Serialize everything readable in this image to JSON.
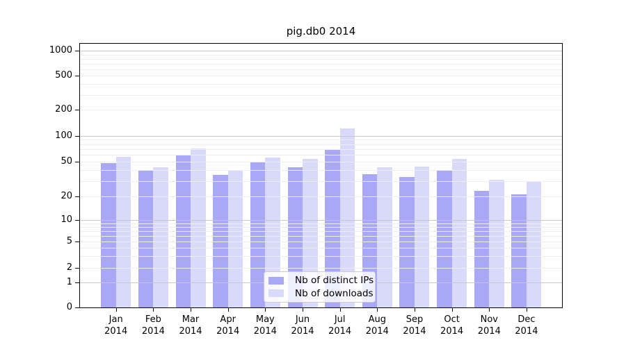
{
  "chart_data": {
    "type": "bar",
    "title": "pig.db0 2014",
    "categories": [
      {
        "month": "Jan",
        "year": "2014"
      },
      {
        "month": "Feb",
        "year": "2014"
      },
      {
        "month": "Mar",
        "year": "2014"
      },
      {
        "month": "Apr",
        "year": "2014"
      },
      {
        "month": "May",
        "year": "2014"
      },
      {
        "month": "Jun",
        "year": "2014"
      },
      {
        "month": "Jul",
        "year": "2014"
      },
      {
        "month": "Aug",
        "year": "2014"
      },
      {
        "month": "Sep",
        "year": "2014"
      },
      {
        "month": "Oct",
        "year": "2014"
      },
      {
        "month": "Nov",
        "year": "2014"
      },
      {
        "month": "Dec",
        "year": "2014"
      }
    ],
    "series": [
      {
        "name": "Nb of distinct IPs",
        "color": "#a8a8f7",
        "values": [
          48,
          40,
          60,
          35,
          50,
          43,
          70,
          36,
          33,
          39,
          23,
          21
        ]
      },
      {
        "name": "Nb of downloads",
        "color": "#d9d9fb",
        "values": [
          57,
          43,
          71,
          40,
          56,
          54,
          122,
          43,
          44,
          54,
          31,
          30
        ]
      }
    ],
    "y_axis": {
      "ticks": [
        0,
        1,
        2,
        5,
        10,
        20,
        50,
        100,
        200,
        500,
        1000
      ],
      "scale": "log-with-zero",
      "range": [
        0,
        1000
      ]
    },
    "x_axis": {
      "label_lines": 2
    },
    "grid": {
      "enabled": true,
      "major_color": "#c8c8c8",
      "minor_color": "#eeeeee"
    },
    "legend": {
      "position": "lower-center"
    },
    "colors": {
      "axis": "#000000",
      "background": "#ffffff"
    }
  }
}
